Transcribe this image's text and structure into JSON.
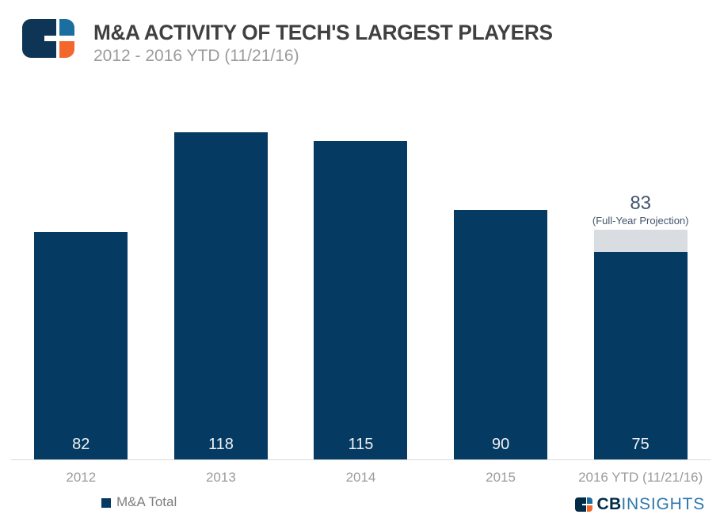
{
  "chart_data": {
    "type": "bar",
    "title": "M&A ACTIVITY OF TECH'S LARGEST PLAYERS",
    "subtitle": "2012 - 2016 YTD (11/21/16)",
    "categories": [
      "2012",
      "2013",
      "2014",
      "2015",
      "2016 YTD (11/21/16)"
    ],
    "series": [
      {
        "name": "M&A Total",
        "values": [
          82,
          118,
          115,
          90,
          75
        ]
      }
    ],
    "projection": {
      "category": "2016 YTD (11/21/16)",
      "value": 83,
      "label": "(Full-Year Projection)"
    },
    "value_labels": "inside-bottom-white",
    "ylim": [
      0,
      130
    ],
    "y_axis_visible": false,
    "gridlines": false,
    "legend": {
      "label": "M&A Total",
      "position": "bottom-left"
    }
  },
  "branding": {
    "wordmark_cb": "CB",
    "wordmark_insights": "INSIGHTS"
  },
  "colors": {
    "bar_navy": "#053A63",
    "projection_gray": "#D9DDE2",
    "title_text": "#404040",
    "subtitle_text": "#9B9B9B",
    "axis_label_text": "#9B9B9B",
    "legend_text": "#7F7F7F",
    "projection_text": "#44546A",
    "bar_value_text": "#F2F2F2",
    "axis_line": "#D8D8D8",
    "logo_navy": "#0E3456",
    "logo_blue": "#1B6FA0",
    "logo_orange": "#F3662C",
    "wordmark_navy": "#002B49",
    "wordmark_blue": "#2E78AE"
  }
}
